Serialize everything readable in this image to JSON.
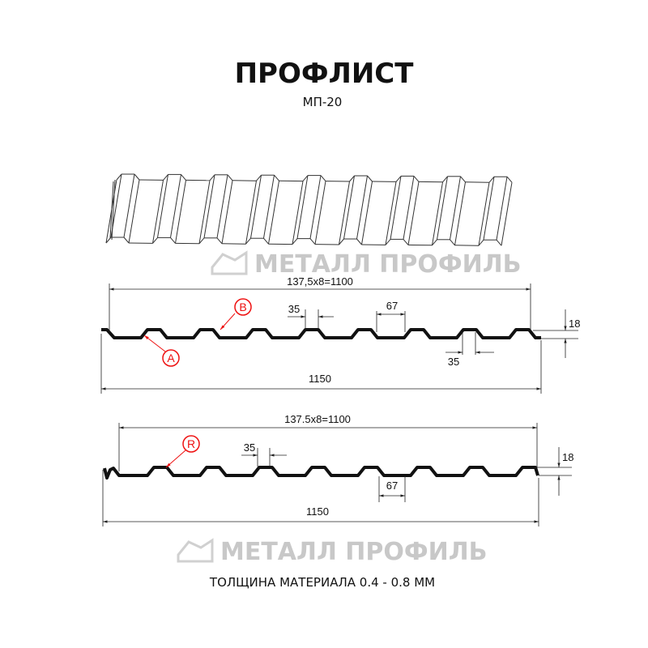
{
  "header": {
    "title": "ПРОФЛИСТ",
    "subtitle": "МП-20"
  },
  "watermark": {
    "text": "МЕТАЛЛ ПРОФИЛЬ",
    "color": "#c8c8c8"
  },
  "profile_a": {
    "pitch_dim": "137,5x8=1100",
    "total_width": "1150",
    "rib_top": "35",
    "rib_bottom": "35",
    "valley": "67",
    "height": "18",
    "labels": [
      "A",
      "B"
    ]
  },
  "profile_b": {
    "pitch_dim": "137.5x8=1100",
    "total_width": "1150",
    "rib_top": "35",
    "valley": "67",
    "height": "18",
    "labels": [
      "R"
    ]
  },
  "footer": {
    "thickness": "ТОЛЩИНА МАТЕРИАЛА 0.4 - 0.8 ММ"
  },
  "colors": {
    "profile": "#111111",
    "callout": "#ee1111",
    "dimension": "#222222"
  }
}
